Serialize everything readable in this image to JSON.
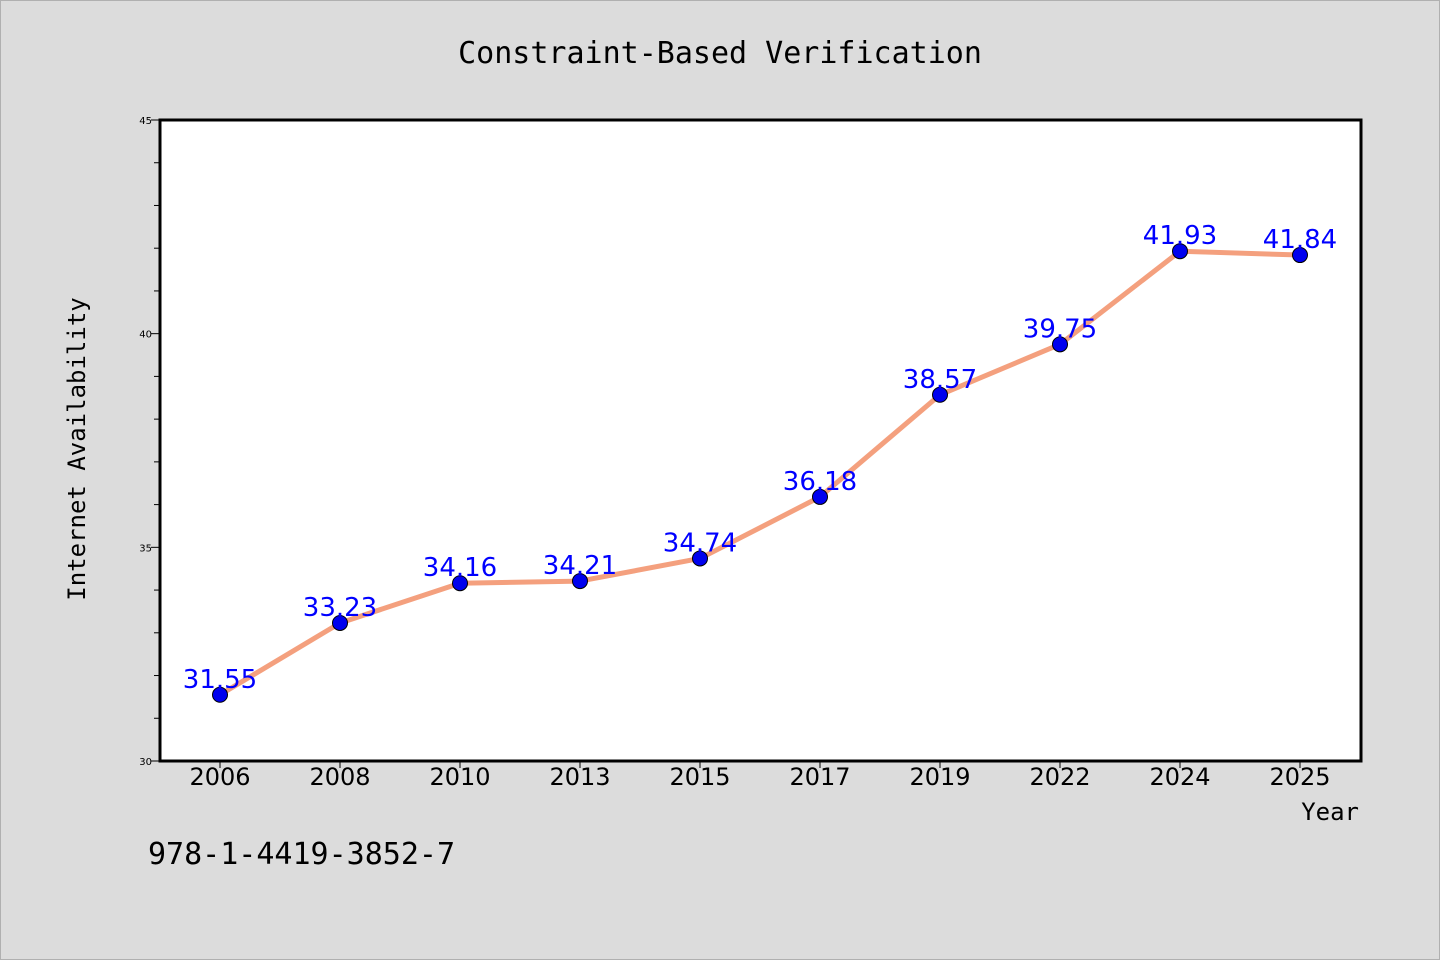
{
  "chart_data": {
    "type": "line",
    "title": "Constraint-Based Verification",
    "xlabel": "Year",
    "ylabel": "Internet Availability",
    "categories": [
      "2006",
      "2008",
      "2010",
      "2013",
      "2015",
      "2017",
      "2019",
      "2022",
      "2024",
      "2025"
    ],
    "series": [
      {
        "values": [
          31.55,
          33.23,
          34.16,
          34.21,
          34.74,
          36.18,
          38.57,
          39.75,
          41.93,
          41.84
        ],
        "labels": [
          "31.55",
          "33.23",
          "34.16",
          "34.21",
          "34.74",
          "36.18",
          "38.57",
          "39.75",
          "41.93",
          "41.84"
        ],
        "line_color": "#f4a07e",
        "marker_color": "#0000ee",
        "label_color": "#0000ff"
      }
    ],
    "ylim": [
      30,
      45
    ],
    "yticks": [
      "30",
      "35",
      "40",
      "45"
    ],
    "grid": false,
    "legend": "none"
  },
  "annotation": {
    "isbn": "978-1-4419-3852-7"
  }
}
